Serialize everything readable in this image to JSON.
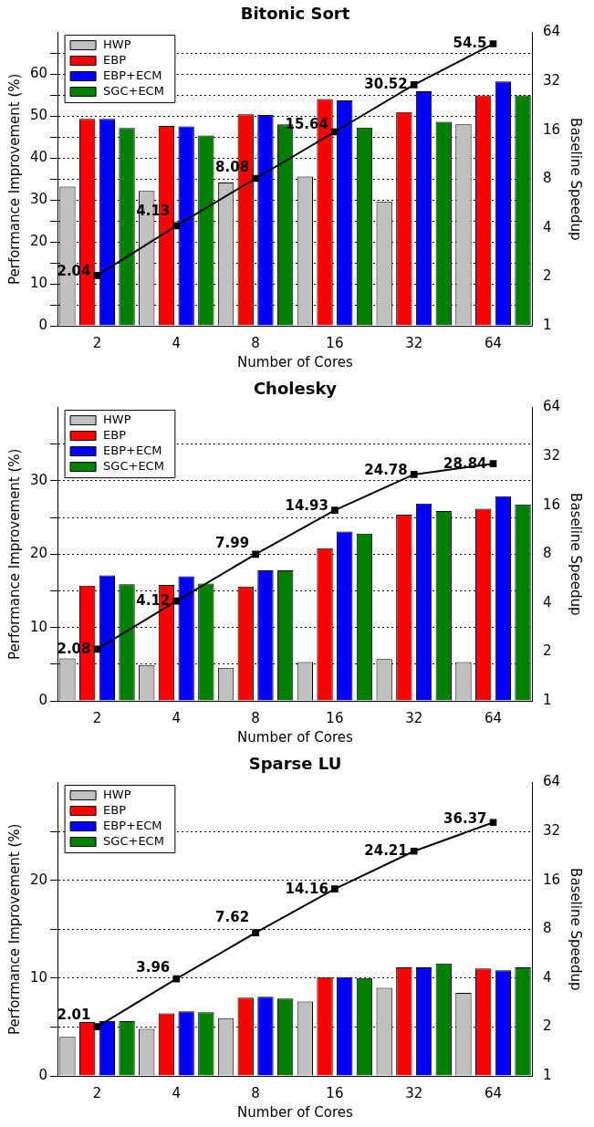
{
  "chart_data": [
    {
      "type": "bar",
      "title": "Bitonic Sort",
      "xlabel": "Number of Cores",
      "ylabel": "Performance Improvement (%)",
      "y2label": "Baseline Speedup",
      "categories": [
        "2",
        "4",
        "8",
        "16",
        "32",
        "64"
      ],
      "series": [
        {
          "name": "HWP",
          "color": "#c0c0c0",
          "values": [
            33.2,
            32.2,
            34.2,
            35.6,
            29.7,
            48.1
          ]
        },
        {
          "name": "EBP",
          "color": "#ff0000",
          "values": [
            49.4,
            47.7,
            50.5,
            54.1,
            51.0,
            55.0
          ]
        },
        {
          "name": "EBP+ECM",
          "color": "#0000ff",
          "values": [
            49.4,
            47.6,
            50.3,
            53.8,
            56.0,
            58.3
          ]
        },
        {
          "name": "SGC+ECM",
          "color": "#008000",
          "values": [
            47.2,
            45.4,
            48.1,
            47.3,
            48.7,
            55.0
          ]
        },
        {
          "type": "line",
          "axis": "y2",
          "color": "#000000",
          "marker": "square",
          "line_style": "solid",
          "values": [
            2.04,
            4.13,
            8.08,
            15.64,
            30.52,
            54.5
          ],
          "value_labels": [
            "2.04",
            "4.13",
            "8.08",
            "15.64",
            "30.52",
            "54.5"
          ]
        }
      ],
      "ylim": [
        0,
        70
      ],
      "yticks": [
        0,
        {
          "value": 5,
          "label": null
        },
        10,
        {
          "value": 15,
          "label": null
        },
        20,
        {
          "value": 25,
          "label": null
        },
        30,
        {
          "value": 35,
          "label": null
        },
        40,
        {
          "value": 45,
          "label": null
        },
        50,
        {
          "value": 55,
          "label": null
        },
        60,
        {
          "value": 65,
          "label": null
        }
      ],
      "y2lim": [
        1,
        64
      ],
      "y2ticks": [
        1,
        2,
        4,
        8,
        16,
        32,
        64
      ],
      "log": "y2",
      "grid": "y",
      "legend": "top left"
    },
    {
      "type": "bar",
      "title": "Cholesky",
      "xlabel": "Number of Cores",
      "ylabel": "Performance Improvement (%)",
      "y2label": "Baseline Speedup",
      "categories": [
        "2",
        "4",
        "8",
        "16",
        "32",
        "64"
      ],
      "series": [
        {
          "name": "HWP",
          "color": "#c0c0c0",
          "values": [
            5.8,
            4.9,
            4.5,
            5.3,
            5.7,
            5.3
          ]
        },
        {
          "name": "EBP",
          "color": "#ff0000",
          "values": [
            15.7,
            15.8,
            15.6,
            20.8,
            25.4,
            26.2
          ]
        },
        {
          "name": "EBP+ECM",
          "color": "#0000ff",
          "values": [
            17.1,
            17.0,
            17.8,
            23.1,
            26.9,
            27.9
          ]
        },
        {
          "name": "SGC+ECM",
          "color": "#008000",
          "values": [
            15.9,
            16.0,
            17.8,
            22.8,
            25.9,
            26.8
          ]
        },
        {
          "type": "line",
          "axis": "y2",
          "color": "#000000",
          "marker": "square",
          "line_style": "solid",
          "values": [
            2.08,
            4.12,
            7.99,
            14.93,
            24.78,
            28.84
          ],
          "value_labels": [
            "2.08",
            "4.12",
            "7.99",
            "14.93",
            "24.78",
            "28.84"
          ]
        }
      ],
      "ylim": [
        0,
        40
      ],
      "yticks": [
        0,
        {
          "value": 5,
          "label": null
        },
        10,
        {
          "value": 15,
          "label": null
        },
        20,
        {
          "value": 25,
          "label": null
        },
        30,
        {
          "value": 35,
          "label": null
        }
      ],
      "y2lim": [
        1,
        64
      ],
      "y2ticks": [
        1,
        2,
        4,
        8,
        16,
        32,
        64
      ],
      "log": "y2",
      "grid": "y",
      "legend": "top left"
    },
    {
      "type": "bar",
      "title": "Sparse LU",
      "xlabel": "Number of Cores",
      "ylabel": "Performance Improvement (%)",
      "y2label": "Baseline Speedup",
      "categories": [
        "2",
        "4",
        "8",
        "16",
        "32",
        "64"
      ],
      "series": [
        {
          "name": "HWP",
          "color": "#c0c0c0",
          "values": [
            4.0,
            4.8,
            5.9,
            7.6,
            9.0,
            8.5
          ]
        },
        {
          "name": "EBP",
          "color": "#ff0000",
          "values": [
            5.5,
            6.4,
            8.0,
            10.1,
            11.1,
            11.0
          ]
        },
        {
          "name": "EBP+ECM",
          "color": "#0000ff",
          "values": [
            5.6,
            6.6,
            8.1,
            10.1,
            11.1,
            10.8
          ]
        },
        {
          "name": "SGC+ECM",
          "color": "#008000",
          "values": [
            5.6,
            6.5,
            7.9,
            10.0,
            11.5,
            11.1
          ]
        },
        {
          "type": "line",
          "axis": "y2",
          "color": "#000000",
          "marker": "square",
          "line_style": "solid",
          "values": [
            2.01,
            3.96,
            7.62,
            14.16,
            24.21,
            36.37
          ],
          "value_labels": [
            "2.01",
            "3.96",
            "7.62",
            "14.16",
            "24.21",
            "36.37"
          ]
        }
      ],
      "ylim": [
        0,
        30
      ],
      "yticks": [
        0,
        {
          "value": 5,
          "label": null
        },
        10,
        {
          "value": 15,
          "label": null
        },
        20,
        {
          "value": 25,
          "label": null
        }
      ],
      "y2lim": [
        1,
        64
      ],
      "y2ticks": [
        1,
        2,
        4,
        8,
        16,
        32,
        64
      ],
      "log": "y2",
      "grid": "y",
      "legend": "top left"
    }
  ]
}
